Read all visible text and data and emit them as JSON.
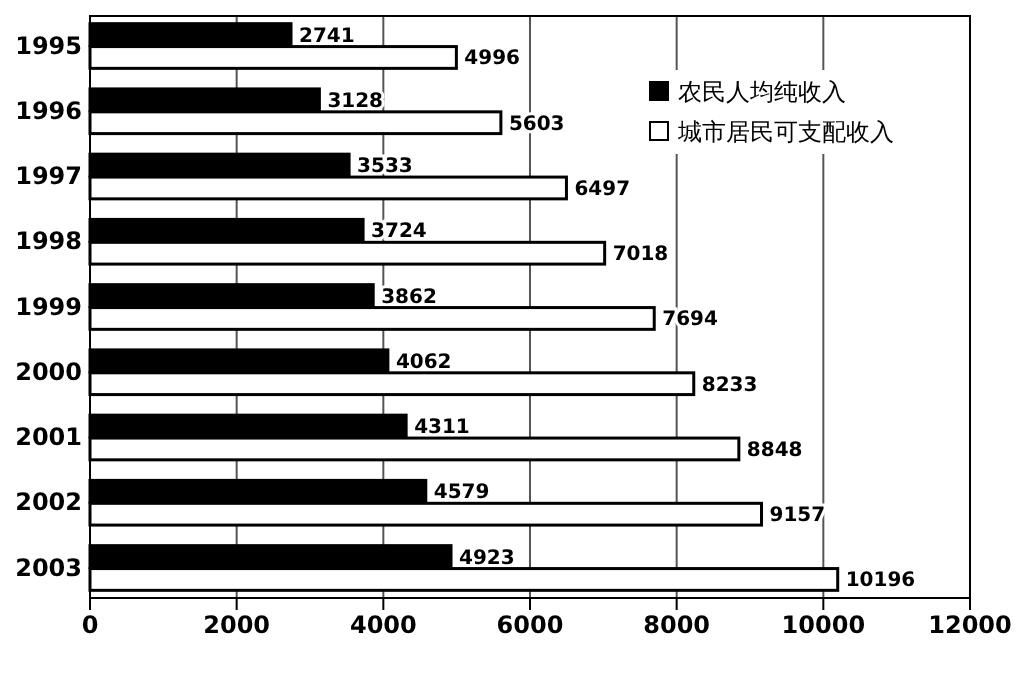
{
  "chart_data": {
    "type": "bar",
    "orientation": "horizontal",
    "categories": [
      "1995",
      "1996",
      "1997",
      "1998",
      "1999",
      "2000",
      "2001",
      "2002",
      "2003"
    ],
    "series": [
      {
        "name": "农民人均纯收入",
        "color": "#000000",
        "values": [
          2741,
          3128,
          3533,
          3724,
          3862,
          4062,
          4311,
          4579,
          4923
        ]
      },
      {
        "name": "城市居民可支配收入",
        "color": "#ffffff",
        "values": [
          4996,
          5603,
          6497,
          7018,
          7694,
          8233,
          8848,
          9157,
          10196
        ]
      }
    ],
    "xlim": [
      0,
      12000
    ],
    "xticks": [
      0,
      2000,
      4000,
      6000,
      8000,
      10000,
      12000
    ],
    "grid": "x",
    "legend": "top right",
    "data_labels": true
  }
}
